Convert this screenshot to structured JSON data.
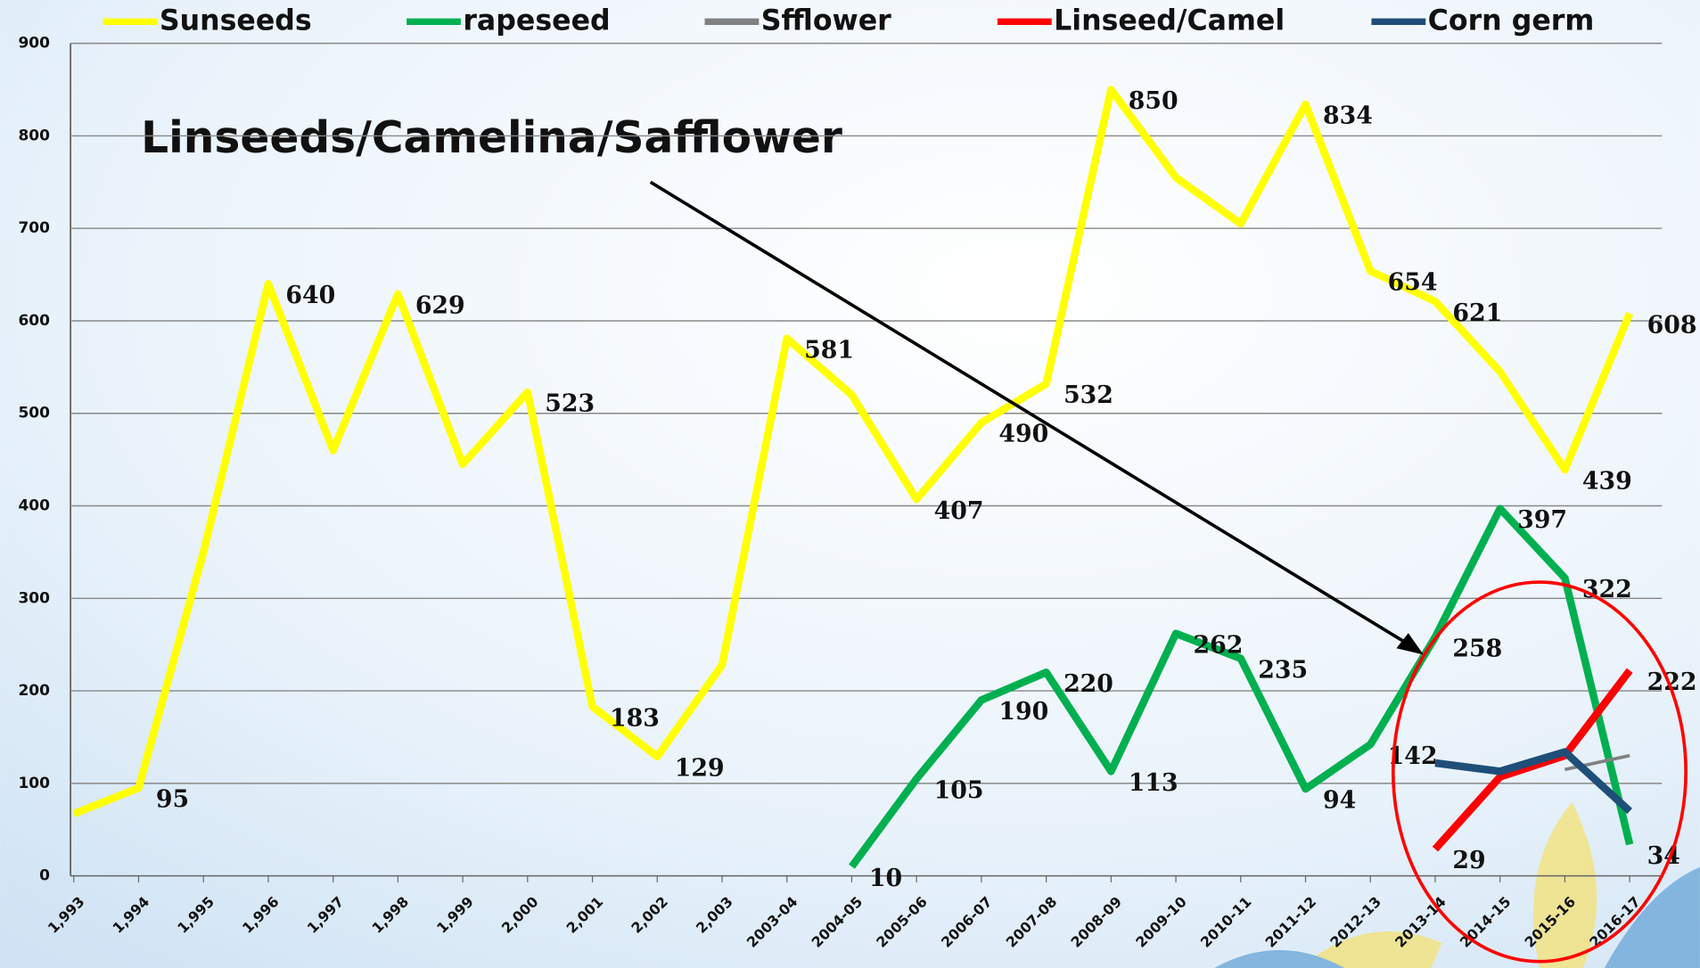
{
  "chart_data": {
    "type": "line",
    "annotation": "Linseeds/Camelina/Safflower",
    "categories": [
      "1,993",
      "1,994",
      "1,995",
      "1,996",
      "1,997",
      "1,998",
      "1,999",
      "2,000",
      "2,001",
      "2,002",
      "2,003",
      "2003-04",
      "2004-05",
      "2005-06",
      "2006-07",
      "2007-08",
      "2008-09",
      "2009-10",
      "2010-11",
      "2011-12",
      "2012-13",
      "2013-14",
      "2014-15",
      "2015-16",
      "2016-17"
    ],
    "ylim": [
      0,
      900
    ],
    "yticks": [
      0,
      100,
      200,
      300,
      400,
      500,
      600,
      700,
      800,
      900
    ],
    "grid": true,
    "legend": "top",
    "series": [
      {
        "name": "Sunseeds",
        "color": "#ffff00",
        "values": [
          67,
          95,
          350,
          640,
          460,
          629,
          445,
          523,
          183,
          129,
          228,
          581,
          520,
          407,
          490,
          532,
          850,
          755,
          705,
          834,
          654,
          621,
          545,
          439,
          608
        ],
        "value_labels": [
          null,
          "95",
          null,
          "640",
          null,
          "629",
          null,
          "523",
          "183",
          "129",
          null,
          "581",
          null,
          "407",
          "490",
          "532",
          "850",
          null,
          null,
          "834",
          "654",
          "621",
          null,
          "439",
          "608"
        ]
      },
      {
        "name": "rapeseed",
        "color": "#00b050",
        "values": [
          null,
          null,
          null,
          null,
          null,
          null,
          null,
          null,
          null,
          null,
          null,
          null,
          10,
          105,
          190,
          220,
          113,
          262,
          235,
          94,
          142,
          258,
          397,
          322,
          34
        ],
        "value_labels": [
          null,
          null,
          null,
          null,
          null,
          null,
          null,
          null,
          null,
          null,
          null,
          null,
          "10",
          "105",
          "190",
          "220",
          "113",
          "262",
          "235",
          "94",
          "142",
          "258",
          "397",
          "322",
          "34"
        ]
      },
      {
        "name": "Sfflower",
        "color": "#808080",
        "values": [
          null,
          null,
          null,
          null,
          null,
          null,
          null,
          null,
          null,
          null,
          null,
          null,
          null,
          null,
          null,
          null,
          null,
          null,
          null,
          null,
          null,
          null,
          null,
          115,
          130
        ]
      },
      {
        "name": "Linseed/Camel",
        "color": "#ff0000",
        "values": [
          null,
          null,
          null,
          null,
          null,
          null,
          null,
          null,
          null,
          null,
          null,
          null,
          null,
          null,
          null,
          null,
          null,
          null,
          null,
          null,
          null,
          29,
          107,
          130,
          222
        ],
        "value_labels": [
          null,
          null,
          null,
          null,
          null,
          null,
          null,
          null,
          null,
          null,
          null,
          null,
          null,
          null,
          null,
          null,
          null,
          null,
          null,
          null,
          null,
          "29",
          null,
          null,
          "222"
        ]
      },
      {
        "name": "Corn germ",
        "color": "#1f4e79",
        "values": [
          null,
          null,
          null,
          null,
          null,
          null,
          null,
          null,
          null,
          null,
          null,
          null,
          null,
          null,
          null,
          null,
          null,
          null,
          null,
          null,
          null,
          122,
          113,
          134,
          70
        ]
      }
    ]
  }
}
